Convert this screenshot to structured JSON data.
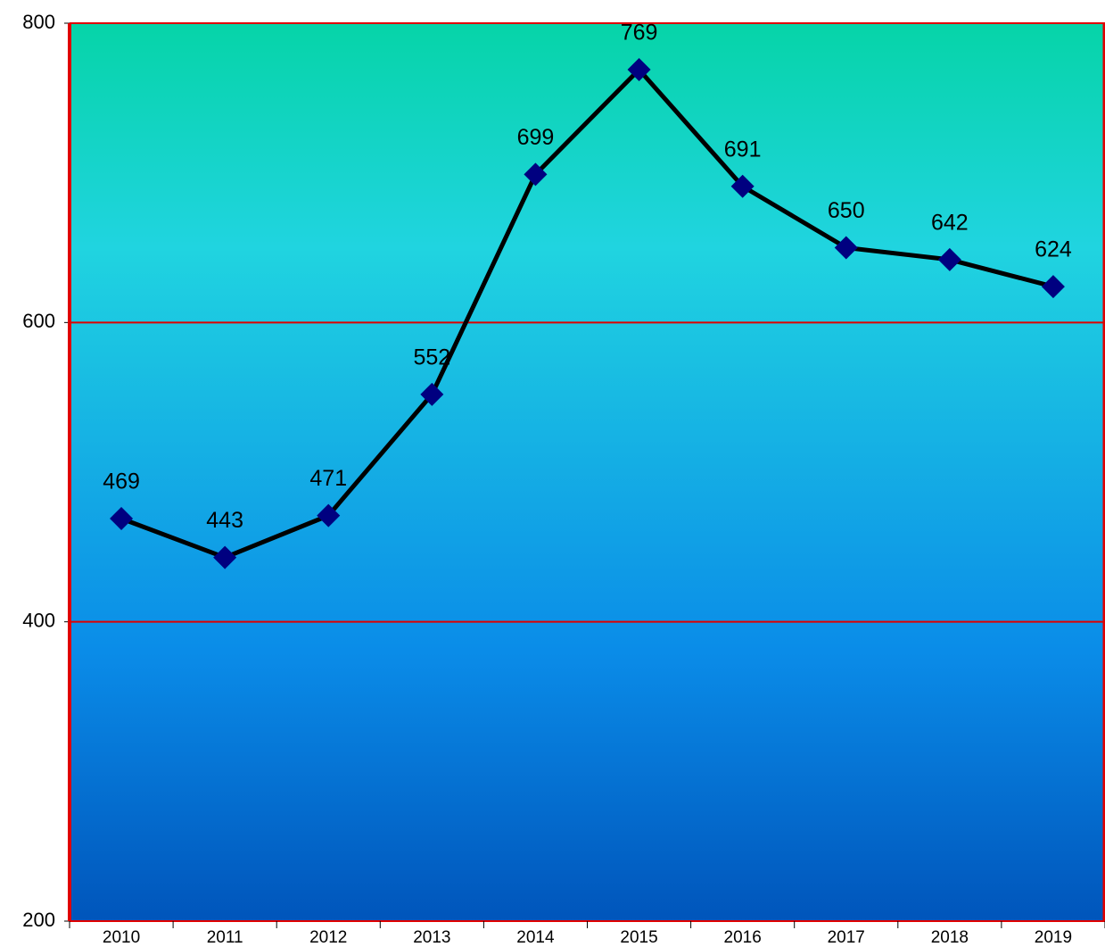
{
  "chart_data": {
    "type": "line",
    "categories": [
      "2010",
      "2011",
      "2012",
      "2013",
      "2014",
      "2015",
      "2016",
      "2017",
      "2018",
      "2019"
    ],
    "series": [
      {
        "color": "#000000",
        "marker_color": "#000080",
        "values": [
          469,
          443,
          471,
          552,
          699,
          769,
          691,
          650,
          642,
          624
        ]
      }
    ],
    "ylim": [
      200,
      800
    ],
    "yticks": [
      200,
      400,
      600,
      800
    ],
    "grid": true,
    "grid_color": "#e00000"
  }
}
